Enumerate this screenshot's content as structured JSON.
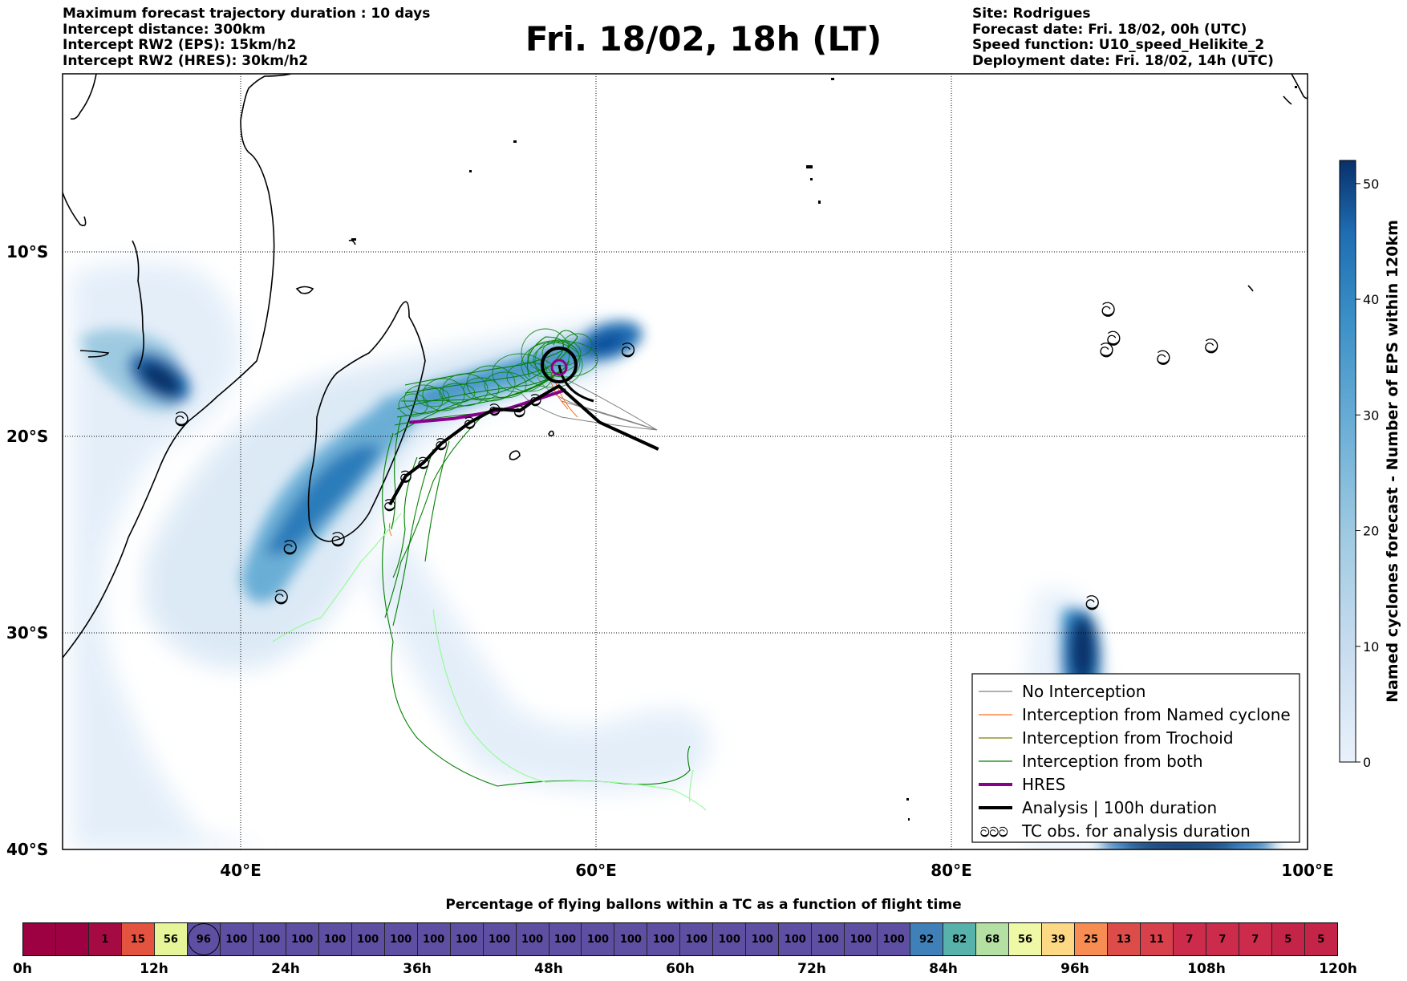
{
  "header": {
    "left_lines": [
      "Maximum forecast trajectory duration : 10 days",
      "Intercept distance: 300km",
      "Intercept RW2 (EPS):  15km/h2",
      "Intercept RW2 (HRES): 30km/h2"
    ],
    "title": "Fri. 18/02, 18h (LT)",
    "right_lines": [
      "Site: Rodrigues",
      "Forecast date: Fri. 18/02, 00h (UTC)",
      "Speed function: U10_speed_Helikite_2",
      "Deployment date: Fri. 18/02, 14h (UTC)"
    ]
  },
  "map": {
    "lat_labels": [
      "10°S",
      "20°S",
      "30°S",
      "40°S"
    ],
    "lon_labels": [
      "40°E",
      "60°E",
      "80°E",
      "100°E"
    ],
    "extent": {
      "lon": [
        30,
        100
      ],
      "lat": [
        -40.5,
        0
      ]
    },
    "hres_color": "#8b008b",
    "analysis_color": "#000000",
    "tc_obs_symbol": "ට",
    "analysis_track": [
      {
        "lon": 48.4,
        "lat": -22.5
      },
      {
        "lon": 49.3,
        "lat": -21.0
      },
      {
        "lon": 50.3,
        "lat": -20.3
      },
      {
        "lon": 51.3,
        "lat": -19.3
      },
      {
        "lon": 52.9,
        "lat": -18.2
      },
      {
        "lon": 54.3,
        "lat": -17.5
      },
      {
        "lon": 55.7,
        "lat": -17.6
      },
      {
        "lon": 56.6,
        "lat": -17.0
      },
      {
        "lon": 57.9,
        "lat": -16.3
      },
      {
        "lon": 60.2,
        "lat": -18.2
      },
      {
        "lon": 63.5,
        "lat": -19.6
      }
    ],
    "hres_track": [
      {
        "lon": 49.5,
        "lat": -18.2
      },
      {
        "lon": 52.0,
        "lat": -18.0
      },
      {
        "lon": 55.0,
        "lat": -17.5
      },
      {
        "lon": 57.0,
        "lat": -16.9
      },
      {
        "lon": 58.3,
        "lat": -16.5
      }
    ],
    "tc_obs": [
      {
        "lon": 36.7,
        "lat": -18.0
      },
      {
        "lon": 42.8,
        "lat": -24.7
      },
      {
        "lon": 45.5,
        "lat": -24.3
      },
      {
        "lon": 42.3,
        "lat": -27.3
      },
      {
        "lon": 61.8,
        "lat": -14.4
      },
      {
        "lon": 88.8,
        "lat": -12.3
      },
      {
        "lon": 89.1,
        "lat": -13.8
      },
      {
        "lon": 88.7,
        "lat": -14.4
      },
      {
        "lon": 91.9,
        "lat": -14.8
      },
      {
        "lon": 94.6,
        "lat": -14.2
      },
      {
        "lon": 87.9,
        "lat": -27.6
      }
    ]
  },
  "legend": {
    "items": [
      {
        "label": "No Interception",
        "color": "#808080",
        "style": "thin"
      },
      {
        "label": "Interception from Named cyclone",
        "color": "#ff6a1a",
        "style": "thin"
      },
      {
        "label": "Interception from Trochoid",
        "color": "#808000",
        "style": "thin"
      },
      {
        "label": "Interception from both",
        "color": "#008000",
        "style": "thin"
      },
      {
        "label": "HRES",
        "color": "#8b008b",
        "style": "thick"
      },
      {
        "label": "Analysis | 100h duration",
        "color": "#000000",
        "style": "thick"
      },
      {
        "label": "TC obs. for analysis duration",
        "color": "#000000",
        "style": "symbol"
      }
    ],
    "symbol_text": "ටටට"
  },
  "colorbar": {
    "title": "Named cyclones forecast - Number of EPS within 120km",
    "ticks": [
      "0",
      "10",
      "20",
      "30",
      "40",
      "50"
    ],
    "tick_values": [
      0,
      10,
      20,
      30,
      40,
      50
    ],
    "range": [
      0,
      52
    ],
    "colors": [
      "#e9f2fb",
      "#c6dbef",
      "#9ecae1",
      "#6baed6",
      "#3a8fc6",
      "#1f6db2",
      "#08306b"
    ]
  },
  "strip": {
    "title": "Percentage of flying ballons within a TC as a function of flight time",
    "values": [
      "",
      "",
      "1",
      "15",
      "56",
      "96",
      "100",
      "100",
      "100",
      "100",
      "100",
      "100",
      "100",
      "100",
      "100",
      "100",
      "100",
      "100",
      "100",
      "100",
      "100",
      "100",
      "100",
      "100",
      "100",
      "100",
      "100",
      "92",
      "82",
      "68",
      "56",
      "39",
      "25",
      "13",
      "11",
      "7",
      "7",
      "7",
      "5",
      "5"
    ],
    "colors": [
      "#9e0142",
      "#9e0142",
      "#a50b42",
      "#e4533f",
      "#e6f598",
      "#5e4fa2",
      "#5e4fa2",
      "#5e4fa2",
      "#5e4fa2",
      "#5e4fa2",
      "#5e4fa2",
      "#5e4fa2",
      "#5e4fa2",
      "#5e4fa2",
      "#5e4fa2",
      "#5e4fa2",
      "#5e4fa2",
      "#5e4fa2",
      "#5e4fa2",
      "#5e4fa2",
      "#5e4fa2",
      "#5e4fa2",
      "#5e4fa2",
      "#5e4fa2",
      "#5e4fa2",
      "#5e4fa2",
      "#5e4fa2",
      "#3f80b9",
      "#58b2ac",
      "#b5e0a3",
      "#eff8a6",
      "#fdd985",
      "#f78d53",
      "#dc4d4a",
      "#d8404b",
      "#cc2b4b",
      "#cc2b4b",
      "#cc2b4b",
      "#c32448",
      "#c32448"
    ],
    "highlight_index": 5,
    "tick_labels": [
      "0h",
      "12h",
      "24h",
      "36h",
      "48h",
      "60h",
      "72h",
      "84h",
      "96h",
      "108h",
      "120h"
    ]
  }
}
